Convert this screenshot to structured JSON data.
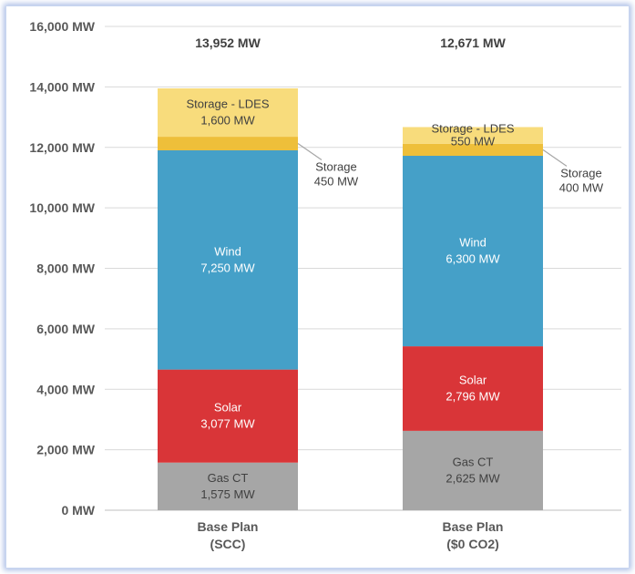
{
  "chart_data": {
    "type": "bar",
    "stacked": true,
    "ylim": [
      0,
      16000
    ],
    "yticks": [
      "0 MW",
      "2,000 MW",
      "4,000 MW",
      "6,000 MW",
      "8,000 MW",
      "10,000 MW",
      "12,000 MW",
      "14,000 MW",
      "16,000 MW"
    ],
    "ytick_values": [
      0,
      2000,
      4000,
      6000,
      8000,
      10000,
      12000,
      14000,
      16000
    ],
    "grid": true,
    "categories": [
      [
        "Base Plan",
        "(SCC)"
      ],
      [
        "Base Plan",
        "($0 CO2)"
      ]
    ],
    "totals": [
      "13,952 MW",
      "12,671 MW"
    ],
    "series": [
      {
        "name": "Gas CT",
        "color": "#a6a6a6",
        "text_color": "#404040",
        "values": [
          1575,
          2625
        ],
        "labels": [
          "1,575 MW",
          "2,625 MW"
        ]
      },
      {
        "name": "Solar",
        "color": "#d93538",
        "text_color": "#ffffff",
        "values": [
          3077,
          2796
        ],
        "labels": [
          "3,077 MW",
          "2,796 MW"
        ]
      },
      {
        "name": "Wind",
        "color": "#45a0c8",
        "text_color": "#ffffff",
        "values": [
          7250,
          6300
        ],
        "labels": [
          "7,250 MW",
          "6,300 MW"
        ]
      },
      {
        "name": "Storage",
        "color": "#eebf3a",
        "text_color": "#404040",
        "values": [
          450,
          400
        ],
        "labels": [
          "450 MW",
          "400 MW"
        ],
        "callout": true
      },
      {
        "name": "Storage - LDES",
        "color": "#f8dc7c",
        "text_color": "#404040",
        "values": [
          1600,
          550
        ],
        "labels": [
          "1,600 MW",
          "550 MW"
        ]
      }
    ]
  }
}
